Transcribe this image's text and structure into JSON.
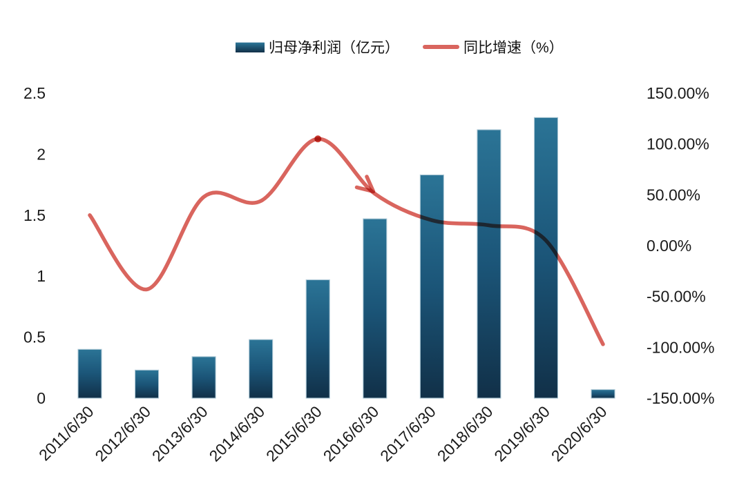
{
  "chart_data": {
    "type": "bar",
    "combo": "bar+line dual-axis",
    "title": "",
    "categories": [
      "2011/6/30",
      "2012/6/30",
      "2013/6/30",
      "2014/6/30",
      "2015/6/30",
      "2016/6/30",
      "2017/6/30",
      "2018/6/30",
      "2019/6/30",
      "2020/6/30"
    ],
    "series": [
      {
        "name": "归母净利润（亿元）",
        "type": "bar",
        "y_axis": "left",
        "values": [
          0.4,
          0.23,
          0.34,
          0.48,
          0.97,
          1.47,
          1.83,
          2.2,
          2.3,
          0.07
        ]
      },
      {
        "name": "同比增速（%）",
        "type": "line",
        "y_axis": "right",
        "smooth": true,
        "values": [
          30,
          -43,
          48,
          44,
          105,
          51,
          25,
          20,
          5,
          -97
        ]
      }
    ],
    "left_axis": {
      "min": 0,
      "max": 2.5,
      "tick_labels": [
        "2.5",
        "2",
        "1.5",
        "1",
        "0.5",
        "0"
      ]
    },
    "right_axis": {
      "min": -150,
      "max": 150,
      "tick_labels": [
        "150.00%",
        "100.00%",
        "50.00%",
        "0.00%",
        "-50.00%",
        "-100.00%",
        "-150.00%"
      ]
    },
    "legend": [
      {
        "label": "归母净利润（亿元）",
        "swatch": "bar"
      },
      {
        "label": "同比增速（%）",
        "swatch": "line"
      }
    ],
    "legend_position": "top-center",
    "grid": false,
    "annotations": {
      "dot_on_point_index": 4,
      "arrowhead_pointing_to_index": 5
    }
  },
  "colors": {
    "bar_top": "#2b7496",
    "bar_mid": "#1b5578",
    "bar_bottom": "#113048",
    "bar_edge": "#aac6d4",
    "line": "#d9655e",
    "dot": "#c93d33",
    "text": "#1a1a1a",
    "background": "#ffffff"
  }
}
